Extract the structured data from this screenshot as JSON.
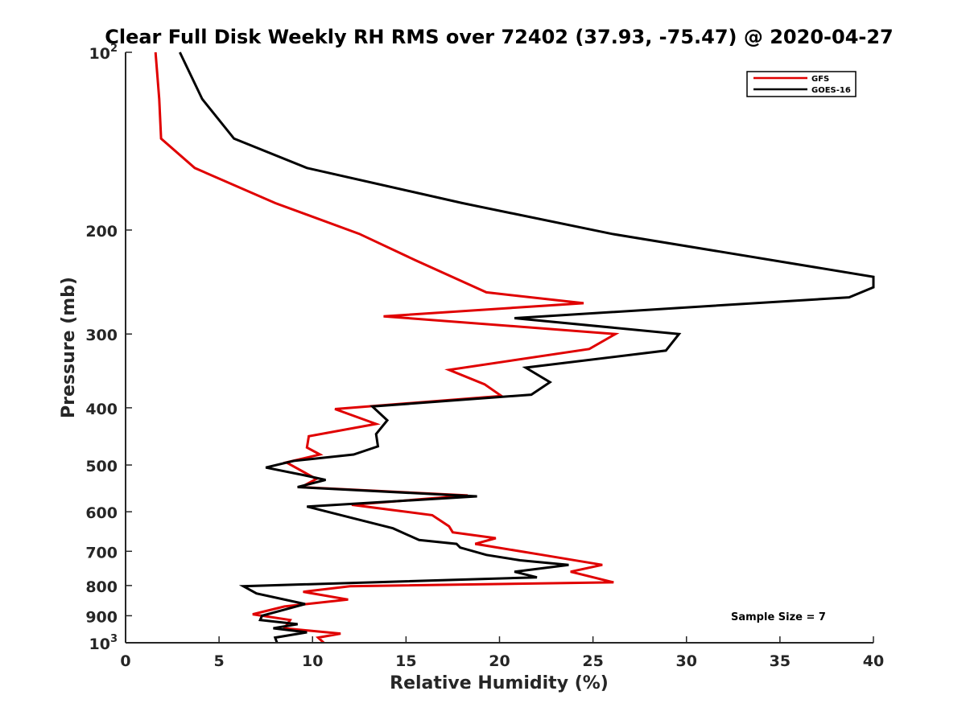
{
  "chart_data": {
    "type": "line",
    "title": "Clear Full Disk Weekly RH RMS over 72402 (37.93, -75.47) @ 2020-04-27",
    "xlabel": "Relative Humidity (%)",
    "ylabel": "Pressure (mb)",
    "xlim": [
      0,
      40
    ],
    "ylim": [
      100,
      1000
    ],
    "yscale": "log",
    "y_reversed": true,
    "grid": false,
    "xticks": [
      0,
      5,
      10,
      15,
      20,
      25,
      30,
      35,
      40
    ],
    "xtick_labels": [
      "0",
      "5",
      "10",
      "15",
      "20",
      "25",
      "30",
      "35",
      "40"
    ],
    "yticks": [
      100,
      200,
      300,
      400,
      500,
      600,
      700,
      800,
      900,
      1000
    ],
    "ytick_labels": [
      {
        "base": "10",
        "exp": "2"
      },
      {
        "base": "200",
        "exp": ""
      },
      {
        "base": "300",
        "exp": ""
      },
      {
        "base": "400",
        "exp": ""
      },
      {
        "base": "500",
        "exp": ""
      },
      {
        "base": "600",
        "exp": ""
      },
      {
        "base": "700",
        "exp": ""
      },
      {
        "base": "800",
        "exp": ""
      },
      {
        "base": "900",
        "exp": ""
      },
      {
        "base": "10",
        "exp": "3"
      }
    ],
    "legend_position": "top-right",
    "annotation": "Sample Size = 7",
    "series": [
      {
        "name": "GFS",
        "color": "#e00000",
        "x": [
          1.6,
          1.8,
          1.9,
          3.7,
          8,
          12.5,
          15.5,
          19.3,
          24.5,
          13.8,
          26.2,
          24.8,
          17.3,
          19.2,
          20.1,
          11.2,
          13.4,
          9.8,
          9.7,
          10.4,
          8.6,
          10.2,
          9.4,
          18.3,
          12.1,
          16.4,
          17.3,
          17.5,
          19.8,
          18.7,
          22.3,
          25.5,
          23.8,
          26.1,
          12.0,
          9.5,
          11.9,
          8.5,
          6.8,
          8.8,
          8.5,
          11.5,
          10.3,
          10.6
        ],
        "y": [
          100,
          120,
          140,
          157,
          180,
          203,
          225,
          255,
          266,
          280,
          300,
          318,
          345,
          365,
          382,
          402,
          426,
          447,
          467,
          480,
          495,
          528,
          545,
          563,
          584,
          608,
          635,
          650,
          665,
          680,
          710,
          738,
          758,
          790,
          802,
          820,
          845,
          868,
          895,
          915,
          945,
          965,
          980,
          1000
        ]
      },
      {
        "name": "GOES-16",
        "color": "#000000",
        "x": [
          2.9,
          4.1,
          5.8,
          9.7,
          18,
          26,
          40,
          40,
          38.7,
          20.8,
          29.6,
          28.9,
          21.4,
          22.7,
          21.7,
          13.2,
          14.0,
          13.4,
          13.5,
          12.2,
          9.0,
          7.5,
          9.5,
          10.7,
          9.2,
          18.8,
          9.7,
          11.7,
          14.3,
          15.7,
          17.7,
          17.9,
          19.3,
          21.1,
          23.7,
          20.8,
          22.0,
          6.3,
          7.0,
          9.6,
          7.3,
          7.2,
          9.2,
          7.9,
          9.7,
          8.0,
          8.1
        ],
        "y": [
          100,
          120,
          140,
          157,
          180,
          203,
          240,
          250,
          260,
          282,
          300,
          320,
          342,
          362,
          380,
          398,
          420,
          443,
          465,
          480,
          492,
          505,
          520,
          530,
          545,
          565,
          588,
          610,
          640,
          670,
          680,
          690,
          710,
          725,
          738,
          758,
          775,
          802,
          825,
          860,
          900,
          915,
          930,
          945,
          960,
          980,
          1000
        ]
      }
    ]
  }
}
